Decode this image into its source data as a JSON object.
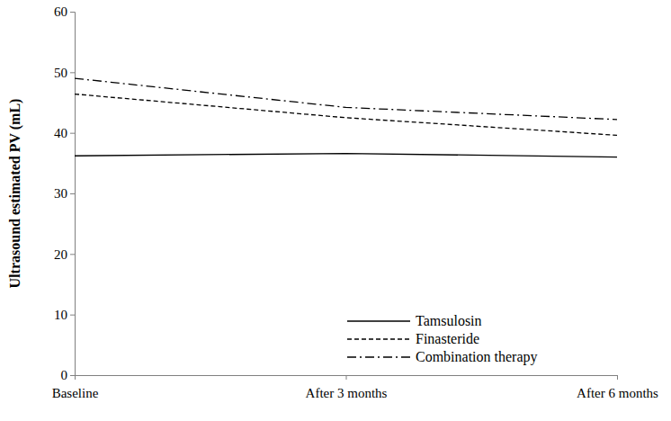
{
  "chart_data": {
    "type": "line",
    "y_label": "Ultrasound estimated PV (mL)",
    "categories": [
      "Baseline",
      "After 3 months",
      "After 6 months"
    ],
    "series": [
      {
        "name": "Tamsulosin",
        "color": "#000000",
        "line_style": "solid",
        "values": [
          36.2,
          36.6,
          36.0
        ]
      },
      {
        "name": "Finasteride",
        "color": "#000000",
        "line_style": "dashed",
        "values": [
          46.4,
          42.5,
          39.6
        ]
      },
      {
        "name": "Combination therapy",
        "color": "#000000",
        "line_style": "dashdot",
        "values": [
          49.0,
          44.2,
          42.2
        ]
      }
    ],
    "ylim": [
      0,
      60
    ],
    "yticks": [
      0,
      10,
      20,
      30,
      40,
      50,
      60
    ],
    "grid": false,
    "legend": "lower right"
  }
}
